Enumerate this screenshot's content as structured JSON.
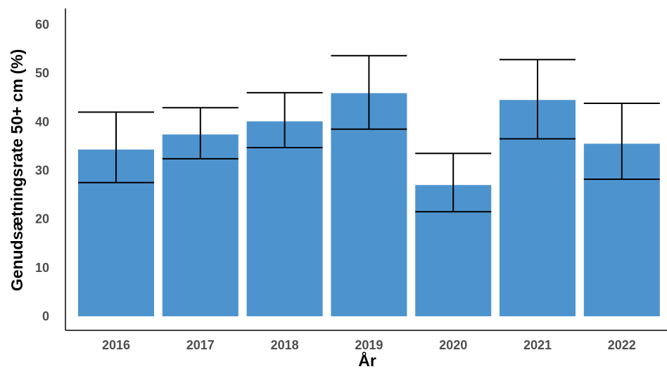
{
  "chart_data": {
    "type": "bar",
    "title": "",
    "xlabel": "År",
    "ylabel": "Genudsætningsrate 50+ cm (%)",
    "categories": [
      "2016",
      "2017",
      "2018",
      "2019",
      "2020",
      "2021",
      "2022"
    ],
    "values": [
      34.3,
      37.4,
      40.1,
      45.9,
      27.0,
      44.5,
      35.5
    ],
    "error_low": [
      27.5,
      32.4,
      34.7,
      38.5,
      21.5,
      36.5,
      28.2
    ],
    "error_high": [
      42.0,
      42.9,
      46.0,
      53.6,
      33.5,
      52.8,
      43.8
    ],
    "ylim": [
      0,
      62
    ],
    "yticks": [
      0,
      10,
      20,
      30,
      40,
      50,
      60
    ],
    "grid": false,
    "legend": "none",
    "bar_color": "#4d94cf",
    "error_color": "#000000"
  }
}
